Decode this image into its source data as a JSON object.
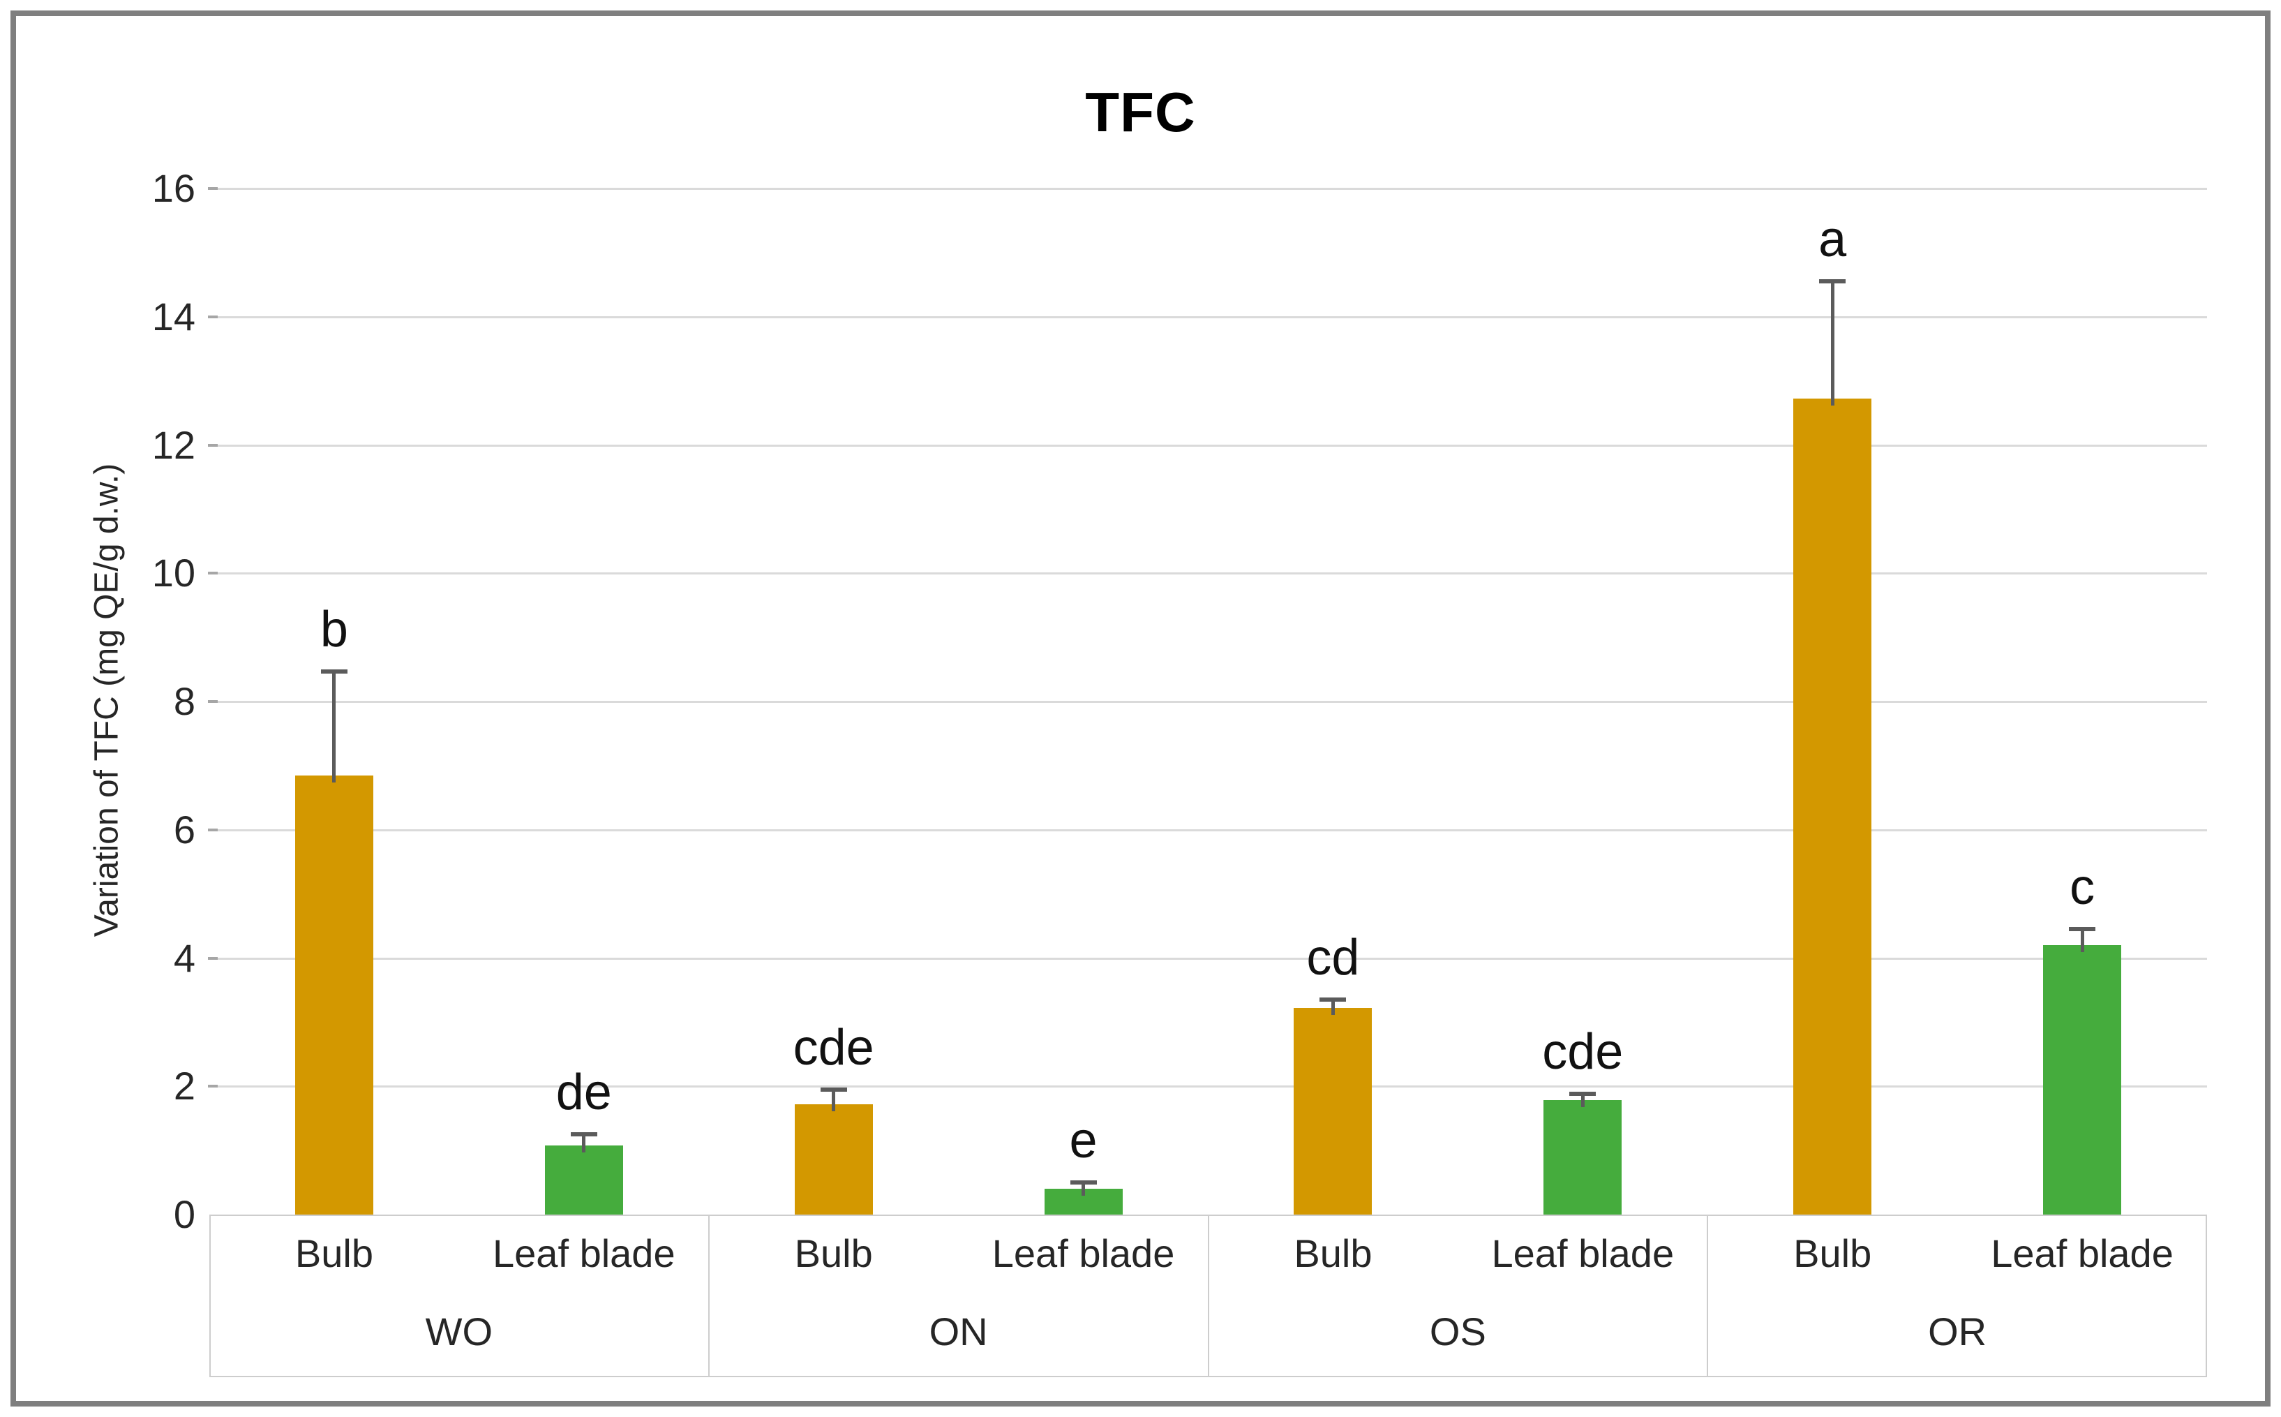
{
  "figure": {
    "border_color": "#7f7f7f",
    "background": "#ffffff"
  },
  "chart_data": {
    "type": "bar",
    "title": "TFC",
    "xlabel": "",
    "ylabel": "Variation of TFC (mg QE/g d.w.)",
    "ylim": [
      0,
      16
    ],
    "yticks": [
      0,
      2,
      4,
      6,
      8,
      10,
      12,
      14,
      16
    ],
    "grid": true,
    "legend": "none",
    "colors": {
      "bulb_bar": "#d39800",
      "leaf_blade_bar": "#45ac3d",
      "gridline": "#dadada",
      "axis_band_border": "#cdcdcd",
      "error_bar": "#5b5b5b"
    },
    "groups": [
      {
        "label": "WO",
        "bars": [
          {
            "category": "Bulb",
            "value": 6.85,
            "error": 1.62,
            "letter": "b"
          },
          {
            "category": "Leaf blade",
            "value": 1.08,
            "error": 0.17,
            "letter": "de"
          }
        ]
      },
      {
        "label": "ON",
        "bars": [
          {
            "category": "Bulb",
            "value": 1.72,
            "error": 0.23,
            "letter": "cde"
          },
          {
            "category": "Leaf blade",
            "value": 0.4,
            "error": 0.1,
            "letter": "e"
          }
        ]
      },
      {
        "label": "OS",
        "bars": [
          {
            "category": "Bulb",
            "value": 3.22,
            "error": 0.13,
            "letter": "cd"
          },
          {
            "category": "Leaf blade",
            "value": 1.79,
            "error": 0.09,
            "letter": "cde"
          }
        ]
      },
      {
        "label": "OR",
        "bars": [
          {
            "category": "Bulb",
            "value": 12.72,
            "error": 1.83,
            "letter": "a"
          },
          {
            "category": "Leaf blade",
            "value": 4.2,
            "error": 0.25,
            "letter": "c"
          }
        ]
      }
    ]
  }
}
